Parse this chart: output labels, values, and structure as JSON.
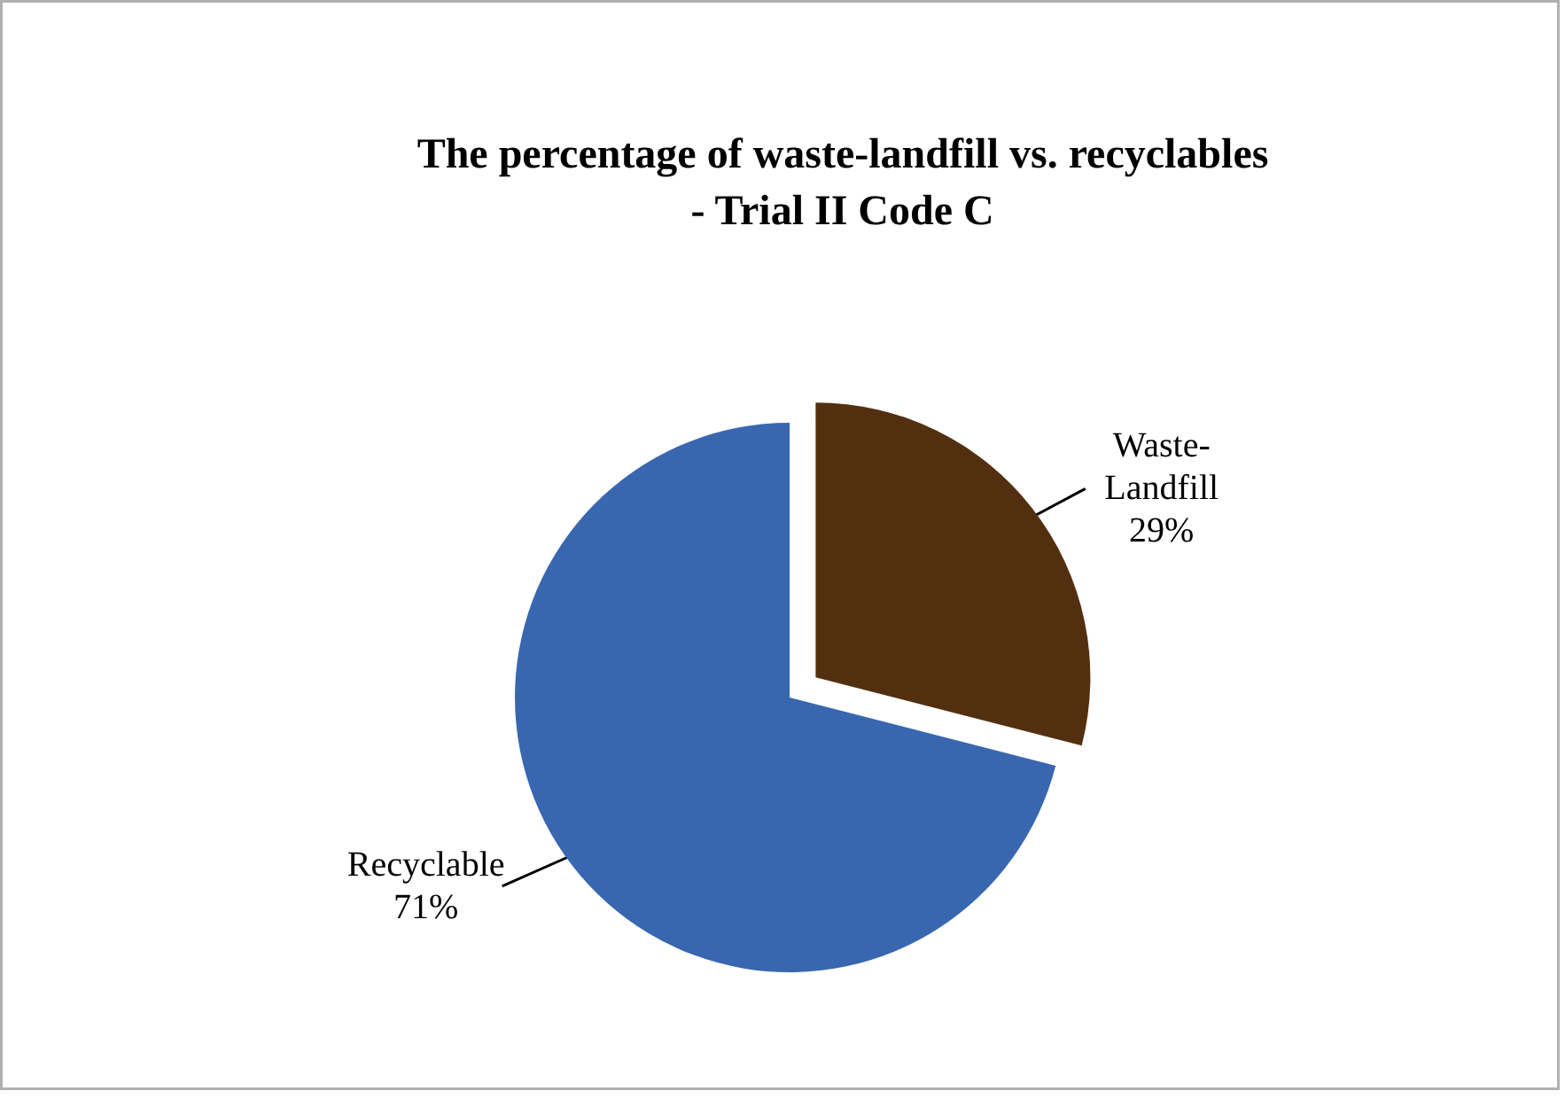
{
  "chart_data": {
    "type": "pie",
    "title": "The percentage of waste-landfill vs. recyclables - Trial II Code C",
    "categories": [
      "Waste-Landfill",
      "Recyclable"
    ],
    "values": [
      29,
      71
    ],
    "colors": [
      "#52300f",
      "#3867b0"
    ],
    "value_labels": [
      "29%",
      "71%"
    ]
  }
}
